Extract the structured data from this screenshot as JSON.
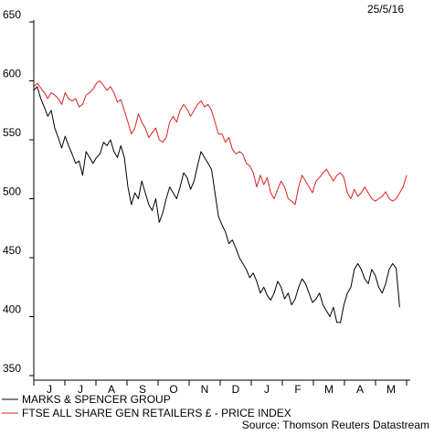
{
  "chart_data": {
    "type": "line",
    "date_label": "25/5/16",
    "source": "Source: Thomson Reuters Datastream",
    "ylim": [
      350,
      650
    ],
    "y_ticks": [
      350,
      400,
      450,
      500,
      550,
      600,
      650
    ],
    "x_tick_labels": [
      "J",
      "J",
      "A",
      "S",
      "O",
      "N",
      "D",
      "J",
      "F",
      "M",
      "A",
      "M"
    ],
    "grid": false,
    "legend_position": "bottom-left",
    "series": [
      {
        "name": "MARKS & SPENCER GROUP",
        "color": "#000000",
        "values": [
          [
            0,
            592
          ],
          [
            3,
            595
          ],
          [
            6,
            585
          ],
          [
            9,
            578
          ],
          [
            12,
            570
          ],
          [
            15,
            575
          ],
          [
            18,
            560
          ],
          [
            21,
            552
          ],
          [
            24,
            543
          ],
          [
            27,
            553
          ],
          [
            30,
            545
          ],
          [
            33,
            538
          ],
          [
            36,
            530
          ],
          [
            39,
            532
          ],
          [
            42,
            520
          ],
          [
            45,
            540
          ],
          [
            48,
            535
          ],
          [
            51,
            530
          ],
          [
            54,
            535
          ],
          [
            57,
            538
          ],
          [
            60,
            548
          ],
          [
            63,
            545
          ],
          [
            66,
            550
          ],
          [
            69,
            540
          ],
          [
            72,
            535
          ],
          [
            75,
            545
          ],
          [
            78,
            535
          ],
          [
            81,
            510
          ],
          [
            84,
            495
          ],
          [
            87,
            505
          ],
          [
            90,
            500
          ],
          [
            93,
            515
          ],
          [
            96,
            505
          ],
          [
            99,
            495
          ],
          [
            102,
            490
          ],
          [
            105,
            500
          ],
          [
            108,
            480
          ],
          [
            111,
            488
          ],
          [
            114,
            500
          ],
          [
            117,
            510
          ],
          [
            120,
            505
          ],
          [
            123,
            500
          ],
          [
            126,
            510
          ],
          [
            129,
            522
          ],
          [
            132,
            518
          ],
          [
            135,
            508
          ],
          [
            138,
            515
          ],
          [
            141,
            528
          ],
          [
            144,
            540
          ],
          [
            147,
            535
          ],
          [
            150,
            530
          ],
          [
            153,
            525
          ],
          [
            156,
            505
          ],
          [
            159,
            485
          ],
          [
            162,
            478
          ],
          [
            165,
            472
          ],
          [
            168,
            462
          ],
          [
            171,
            465
          ],
          [
            174,
            458
          ],
          [
            177,
            450
          ],
          [
            180,
            445
          ],
          [
            183,
            440
          ],
          [
            186,
            433
          ],
          [
            189,
            437
          ],
          [
            192,
            430
          ],
          [
            195,
            420
          ],
          [
            198,
            425
          ],
          [
            201,
            418
          ],
          [
            204,
            414
          ],
          [
            207,
            420
          ],
          [
            210,
            430
          ],
          [
            213,
            425
          ],
          [
            216,
            415
          ],
          [
            219,
            420
          ],
          [
            222,
            410
          ],
          [
            225,
            415
          ],
          [
            228,
            425
          ],
          [
            231,
            432
          ],
          [
            234,
            428
          ],
          [
            237,
            420
          ],
          [
            240,
            412
          ],
          [
            243,
            415
          ],
          [
            246,
            420
          ],
          [
            249,
            410
          ],
          [
            252,
            405
          ],
          [
            255,
            400
          ],
          [
            258,
            408
          ],
          [
            261,
            395
          ],
          [
            264,
            395
          ],
          [
            267,
            410
          ],
          [
            270,
            420
          ],
          [
            273,
            425
          ],
          [
            276,
            440
          ],
          [
            279,
            445
          ],
          [
            282,
            440
          ],
          [
            285,
            432
          ],
          [
            288,
            428
          ],
          [
            291,
            440
          ],
          [
            294,
            435
          ],
          [
            297,
            425
          ],
          [
            300,
            420
          ],
          [
            303,
            428
          ],
          [
            306,
            440
          ],
          [
            309,
            445
          ],
          [
            312,
            441
          ],
          [
            315,
            408
          ]
        ]
      },
      {
        "name": "FTSE ALL SHARE GEN RETAILERS £ - PRICE INDEX",
        "color": "#e02020",
        "values": [
          [
            0,
            595
          ],
          [
            3,
            598
          ],
          [
            6,
            594
          ],
          [
            9,
            590
          ],
          [
            12,
            585
          ],
          [
            15,
            590
          ],
          [
            18,
            588
          ],
          [
            21,
            585
          ],
          [
            24,
            580
          ],
          [
            27,
            590
          ],
          [
            30,
            585
          ],
          [
            33,
            583
          ],
          [
            36,
            585
          ],
          [
            39,
            578
          ],
          [
            42,
            580
          ],
          [
            45,
            588
          ],
          [
            48,
            590
          ],
          [
            51,
            593
          ],
          [
            54,
            598
          ],
          [
            57,
            600
          ],
          [
            60,
            596
          ],
          [
            63,
            592
          ],
          [
            66,
            595
          ],
          [
            69,
            590
          ],
          [
            72,
            582
          ],
          [
            75,
            584
          ],
          [
            78,
            575
          ],
          [
            81,
            565
          ],
          [
            84,
            555
          ],
          [
            87,
            560
          ],
          [
            90,
            572
          ],
          [
            93,
            565
          ],
          [
            96,
            560
          ],
          [
            99,
            552
          ],
          [
            102,
            556
          ],
          [
            105,
            560
          ],
          [
            108,
            550
          ],
          [
            111,
            548
          ],
          [
            114,
            552
          ],
          [
            117,
            565
          ],
          [
            120,
            570
          ],
          [
            123,
            565
          ],
          [
            126,
            575
          ],
          [
            129,
            580
          ],
          [
            132,
            576
          ],
          [
            135,
            570
          ],
          [
            138,
            575
          ],
          [
            141,
            580
          ],
          [
            144,
            583
          ],
          [
            147,
            578
          ],
          [
            150,
            580
          ],
          [
            153,
            575
          ],
          [
            156,
            565
          ],
          [
            159,
            555
          ],
          [
            162,
            555
          ],
          [
            165,
            548
          ],
          [
            168,
            552
          ],
          [
            171,
            542
          ],
          [
            174,
            538
          ],
          [
            177,
            540
          ],
          [
            180,
            538
          ],
          [
            183,
            530
          ],
          [
            186,
            528
          ],
          [
            189,
            522
          ],
          [
            192,
            510
          ],
          [
            195,
            520
          ],
          [
            198,
            512
          ],
          [
            201,
            518
          ],
          [
            204,
            505
          ],
          [
            207,
            500
          ],
          [
            210,
            508
          ],
          [
            213,
            515
          ],
          [
            216,
            510
          ],
          [
            219,
            500
          ],
          [
            222,
            498
          ],
          [
            225,
            495
          ],
          [
            228,
            510
          ],
          [
            231,
            520
          ],
          [
            234,
            515
          ],
          [
            237,
            510
          ],
          [
            240,
            505
          ],
          [
            243,
            515
          ],
          [
            246,
            518
          ],
          [
            249,
            522
          ],
          [
            252,
            525
          ],
          [
            255,
            520
          ],
          [
            258,
            515
          ],
          [
            261,
            520
          ],
          [
            264,
            522
          ],
          [
            267,
            518
          ],
          [
            270,
            505
          ],
          [
            273,
            500
          ],
          [
            276,
            508
          ],
          [
            279,
            502
          ],
          [
            282,
            505
          ],
          [
            285,
            510
          ],
          [
            288,
            505
          ],
          [
            291,
            500
          ],
          [
            294,
            498
          ],
          [
            297,
            500
          ],
          [
            300,
            502
          ],
          [
            303,
            506
          ],
          [
            306,
            500
          ],
          [
            309,
            498
          ],
          [
            312,
            500
          ],
          [
            315,
            505
          ],
          [
            318,
            510
          ],
          [
            321,
            520
          ]
        ]
      }
    ]
  }
}
